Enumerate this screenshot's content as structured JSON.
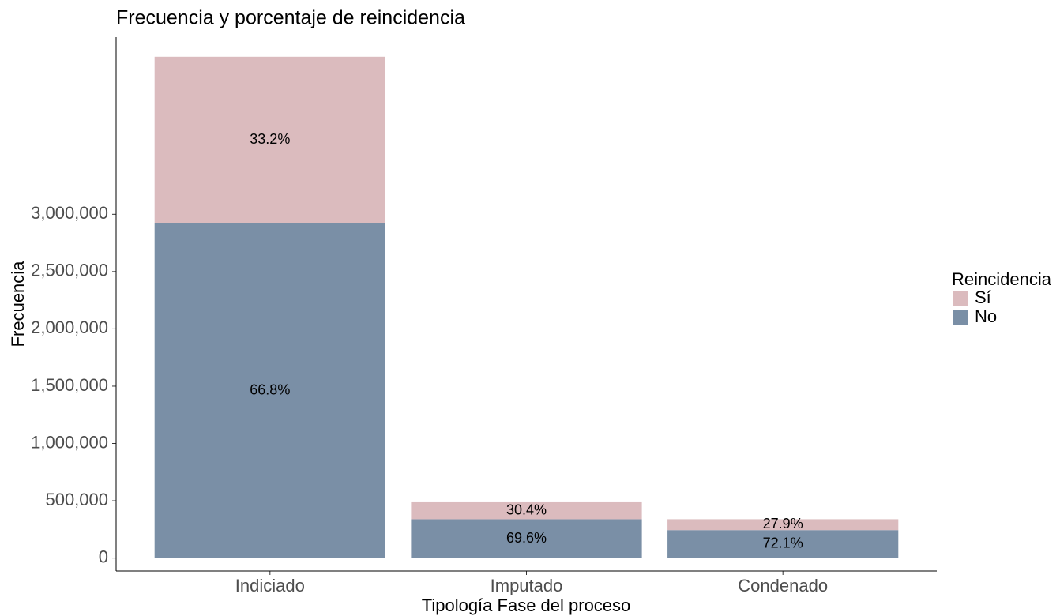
{
  "chart_data": {
    "type": "stacked_bar",
    "title": "Frecuencia y porcentaje de reincidencia",
    "x_label": "Tipología Fase del proceso",
    "y_label": "Frecuencia",
    "legend_title": "Reincidencia",
    "legend": "right",
    "categories": [
      "Indiciado",
      "Imputado",
      "Condenado"
    ],
    "series": [
      {
        "name": "Sí",
        "color": "#dbbbbe",
        "values": [
          1455000,
          148000,
          95000
        ],
        "labels": [
          "33.2%",
          "30.4%",
          "27.9%"
        ]
      },
      {
        "name": "No",
        "color": "#7a8fa6",
        "values": [
          2920000,
          339000,
          244000
        ],
        "labels": [
          "66.8%",
          "69.6%",
          "72.1%"
        ]
      }
    ],
    "ylim": [
      -113000,
      4546000
    ],
    "yticks": [
      0,
      {
        "value": 500000,
        "label": "500,000"
      },
      {
        "value": 1000000,
        "label": "1,000,000"
      },
      {
        "value": 1500000,
        "label": "1,500,000"
      },
      {
        "value": 2000000,
        "label": "2,000,000"
      },
      {
        "value": 2500000,
        "label": "2,500,000"
      },
      {
        "value": 3000000,
        "label": "3,000,000"
      }
    ],
    "grid": false
  }
}
